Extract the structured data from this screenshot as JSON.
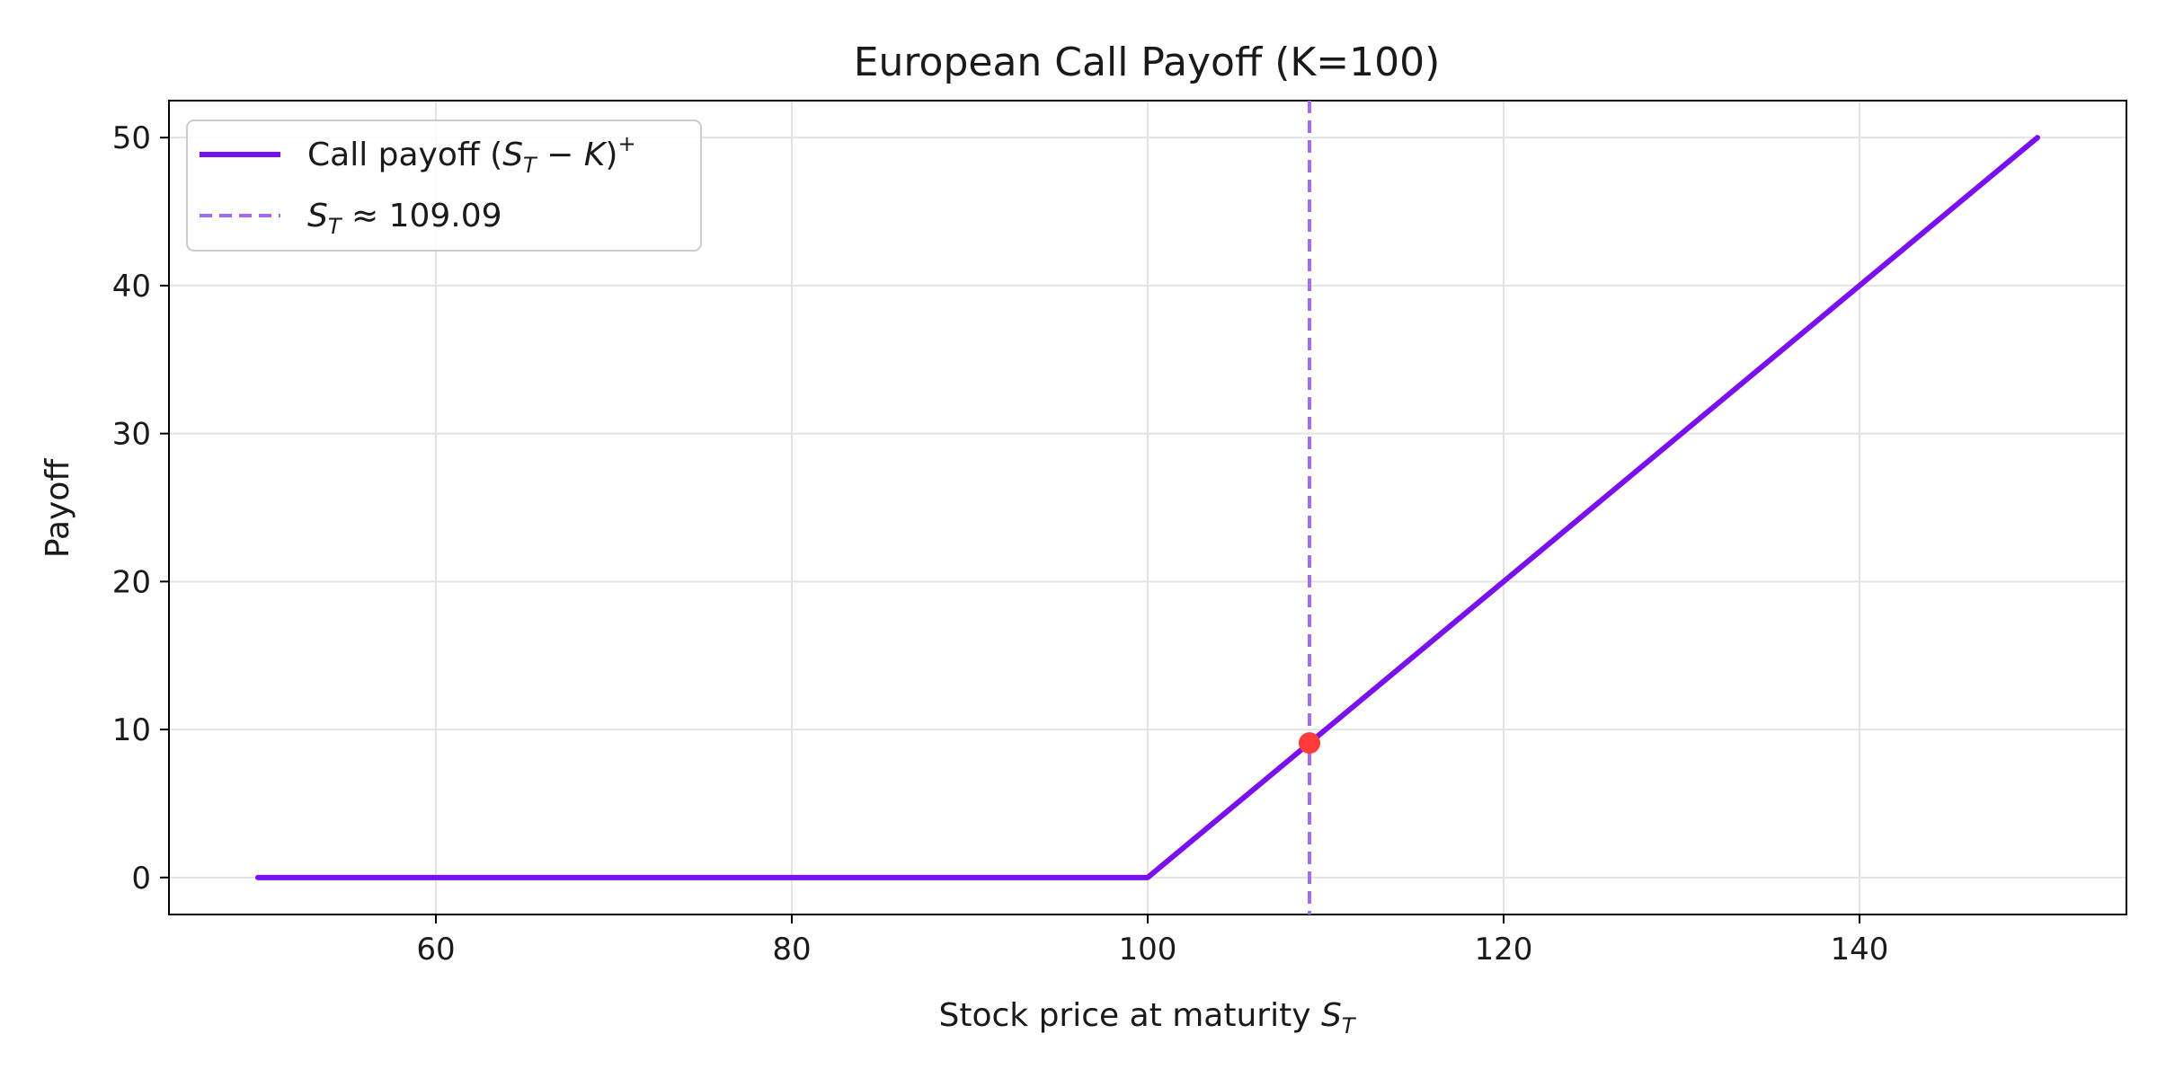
{
  "chart_data": {
    "type": "line",
    "title": "European Call Payoff (K=100)",
    "xlabel": "Stock price at maturity S_T",
    "ylabel": "Payoff",
    "xlim": [
      45,
      155
    ],
    "ylim": [
      -2.5,
      52.5
    ],
    "xticks": [
      60,
      80,
      100,
      120,
      140
    ],
    "yticks": [
      0,
      10,
      20,
      30,
      40,
      50
    ],
    "grid": true,
    "legend_position": "upper-left",
    "strike": 100,
    "series": [
      {
        "name": "Call payoff (S_T − K)+",
        "x": [
          50,
          100,
          150
        ],
        "y": [
          0,
          0,
          50
        ],
        "color": "#7a10f0",
        "style": "solid"
      }
    ],
    "vline": {
      "x": 109.09,
      "label": "S_T ≈ 109.09",
      "color": "#a66cf0",
      "style": "dashed"
    },
    "marker": {
      "x": 109.09,
      "y": 9.09,
      "color": "#ff3b3b"
    }
  },
  "text": {
    "title": "European Call Payoff (K=100)",
    "xlabel_main": "Stock price at maturity ",
    "xlabel_sym": "S",
    "xlabel_sub": "T",
    "ylabel": "Payoff",
    "legend_call_prefix": "Call payoff (",
    "legend_call_S": "S",
    "legend_call_sub": "T",
    "legend_call_mid": " − ",
    "legend_call_K": "K",
    "legend_call_close": ")",
    "legend_call_sup": "+",
    "legend_vline_S": "S",
    "legend_vline_sub": "T",
    "legend_vline_rest": " ≈ 109.09"
  }
}
